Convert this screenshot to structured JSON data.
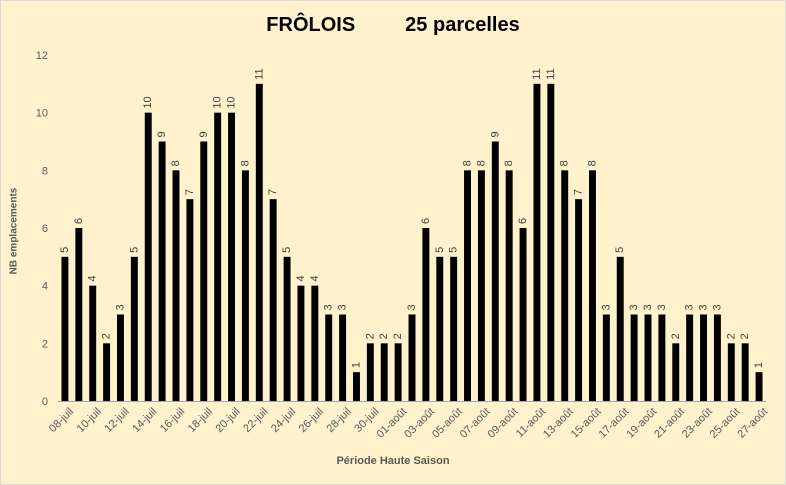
{
  "chart_data": {
    "type": "bar",
    "title": "FRÔLOIS         25 parcelles",
    "xlabel": "Période Haute Saison",
    "ylabel": "NB emplacements",
    "ylim": [
      0,
      12
    ],
    "yticks": [
      0,
      2,
      4,
      6,
      8,
      10,
      12
    ],
    "grid": false,
    "bar_color": "#000000",
    "background": "#fff2cc",
    "categories": [
      "08-juil",
      "09-juil",
      "10-juil",
      "11-juil",
      "12-juil",
      "13-juil",
      "14-juil",
      "15-juil",
      "16-juil",
      "17-juil",
      "18-juil",
      "19-juil",
      "20-juil",
      "21-juil",
      "22-juil",
      "23-juil",
      "24-juil",
      "25-juil",
      "26-juil",
      "27-juil",
      "28-juil",
      "29-juil",
      "30-juil",
      "31-juil",
      "01-août",
      "02-août",
      "03-août",
      "04-août",
      "05-août",
      "06-août",
      "07-août",
      "08-août",
      "09-août",
      "10-août",
      "11-août",
      "12-août",
      "13-août",
      "14-août",
      "15-août",
      "16-août",
      "17-août",
      "18-août",
      "19-août",
      "20-août",
      "21-août",
      "22-août",
      "23-août",
      "24-août",
      "25-août",
      "26-août",
      "27-août"
    ],
    "tick_labels": [
      "08-juil",
      "10-juil",
      "12-juil",
      "14-juil",
      "16-juil",
      "18-juil",
      "20-juil",
      "22-juil",
      "24-juil",
      "26-juil",
      "28-juil",
      "30-juil",
      "01-août",
      "03-août",
      "05-août",
      "07-août",
      "09-août",
      "11-août",
      "13-août",
      "15-août",
      "17-août",
      "19-août",
      "21-août",
      "23-août",
      "25-août",
      "27-août"
    ],
    "values": [
      5,
      6,
      4,
      2,
      3,
      5,
      10,
      9,
      8,
      7,
      9,
      10,
      10,
      8,
      11,
      7,
      5,
      4,
      4,
      3,
      3,
      1,
      2,
      2,
      2,
      3,
      6,
      5,
      5,
      8,
      8,
      9,
      8,
      6,
      11,
      11,
      8,
      7,
      8,
      3,
      5,
      3,
      3,
      3,
      2,
      3,
      3,
      3,
      2,
      2,
      1
    ]
  }
}
